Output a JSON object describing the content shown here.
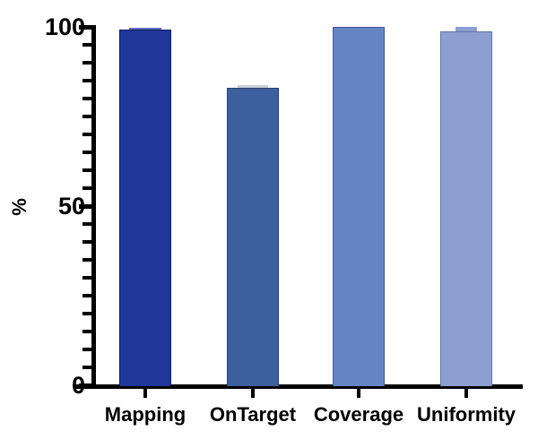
{
  "chart_data": {
    "type": "bar",
    "title": "",
    "xlabel": "",
    "ylabel": "%",
    "ylim": [
      0,
      100
    ],
    "ytick_major": [
      "0",
      "50",
      "100"
    ],
    "ytick_major_values": [
      0,
      50,
      100
    ],
    "ytick_minor_step": 5,
    "grid": false,
    "legend": null,
    "categories": [
      "Mapping",
      "OnTarget",
      "Coverage",
      "Uniformity"
    ],
    "values": [
      99.3,
      83,
      100,
      98.7
    ],
    "bar_fill_colors": [
      "#1f3798",
      "#3e5f9e",
      "#6584c3",
      "#8c9fd0"
    ],
    "bar_border_colors": [
      "#141f60",
      "#27406f",
      "#44598f",
      "#5f74a8"
    ],
    "top_markers": [
      {
        "color": "#5b6fb5",
        "w": 36,
        "h": 2
      },
      {
        "color": "#c9cfda",
        "w": 34,
        "h": 3
      },
      null,
      {
        "color": "#8c9fd0",
        "w": 24,
        "h": 5
      }
    ],
    "axis_color": "#000000",
    "background_color": "#ffffff"
  }
}
